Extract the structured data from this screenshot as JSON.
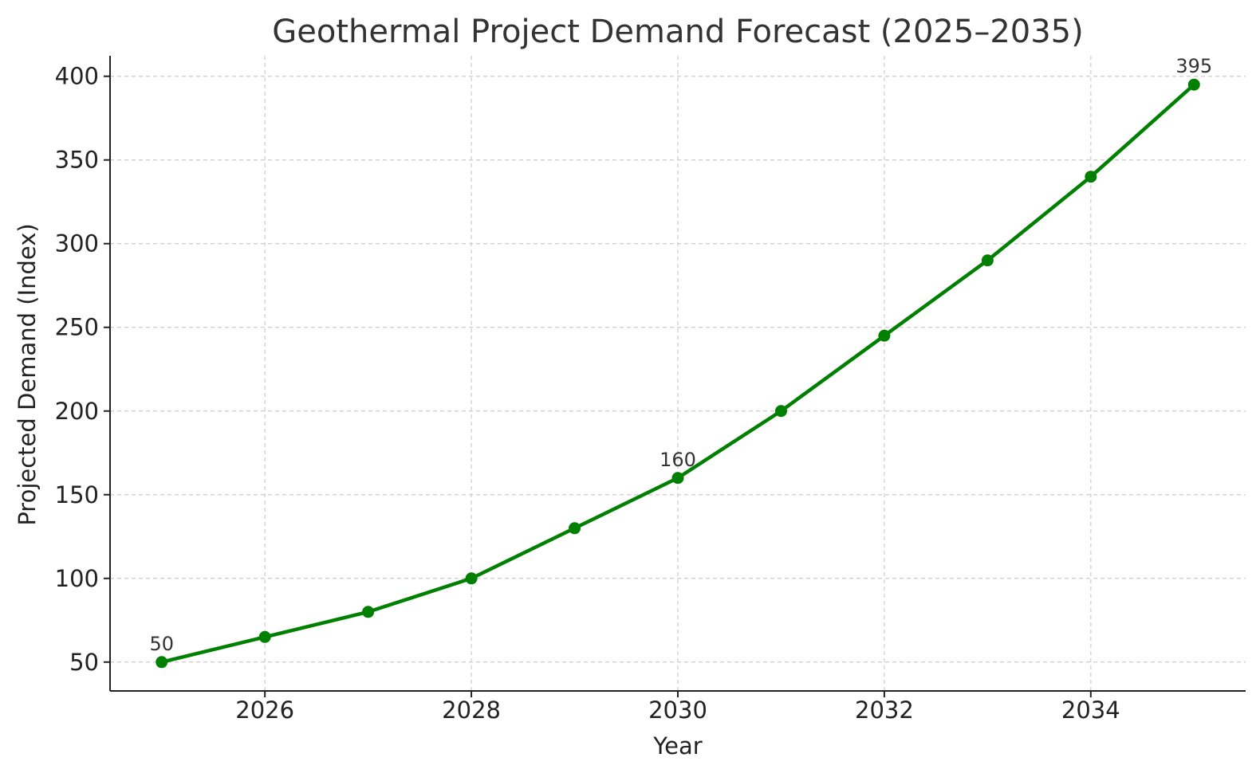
{
  "chart_data": {
    "type": "line",
    "title": "Geothermal Project Demand Forecast (2025–2035)",
    "xlabel": "Year",
    "ylabel": "Projected Demand (Index)",
    "x": [
      2025,
      2026,
      2027,
      2028,
      2029,
      2030,
      2031,
      2032,
      2033,
      2034,
      2035
    ],
    "series": [
      {
        "values": [
          50,
          65,
          80,
          100,
          130,
          160,
          200,
          245,
          290,
          340,
          395
        ],
        "color": "#008000",
        "marker": "circle"
      }
    ],
    "xlim": [
      2024.5,
      2035.5
    ],
    "ylim": [
      32.75,
      412.25
    ],
    "xticks": [
      2026,
      2028,
      2030,
      2032,
      2034
    ],
    "yticks": [
      50,
      100,
      150,
      200,
      250,
      300,
      350,
      400
    ],
    "annotations": [
      {
        "x": 2025,
        "y": 50,
        "text": "50"
      },
      {
        "x": 2030,
        "y": 160,
        "text": "160"
      },
      {
        "x": 2035,
        "y": 395,
        "text": "395"
      }
    ],
    "grid": true,
    "legend": "none"
  }
}
